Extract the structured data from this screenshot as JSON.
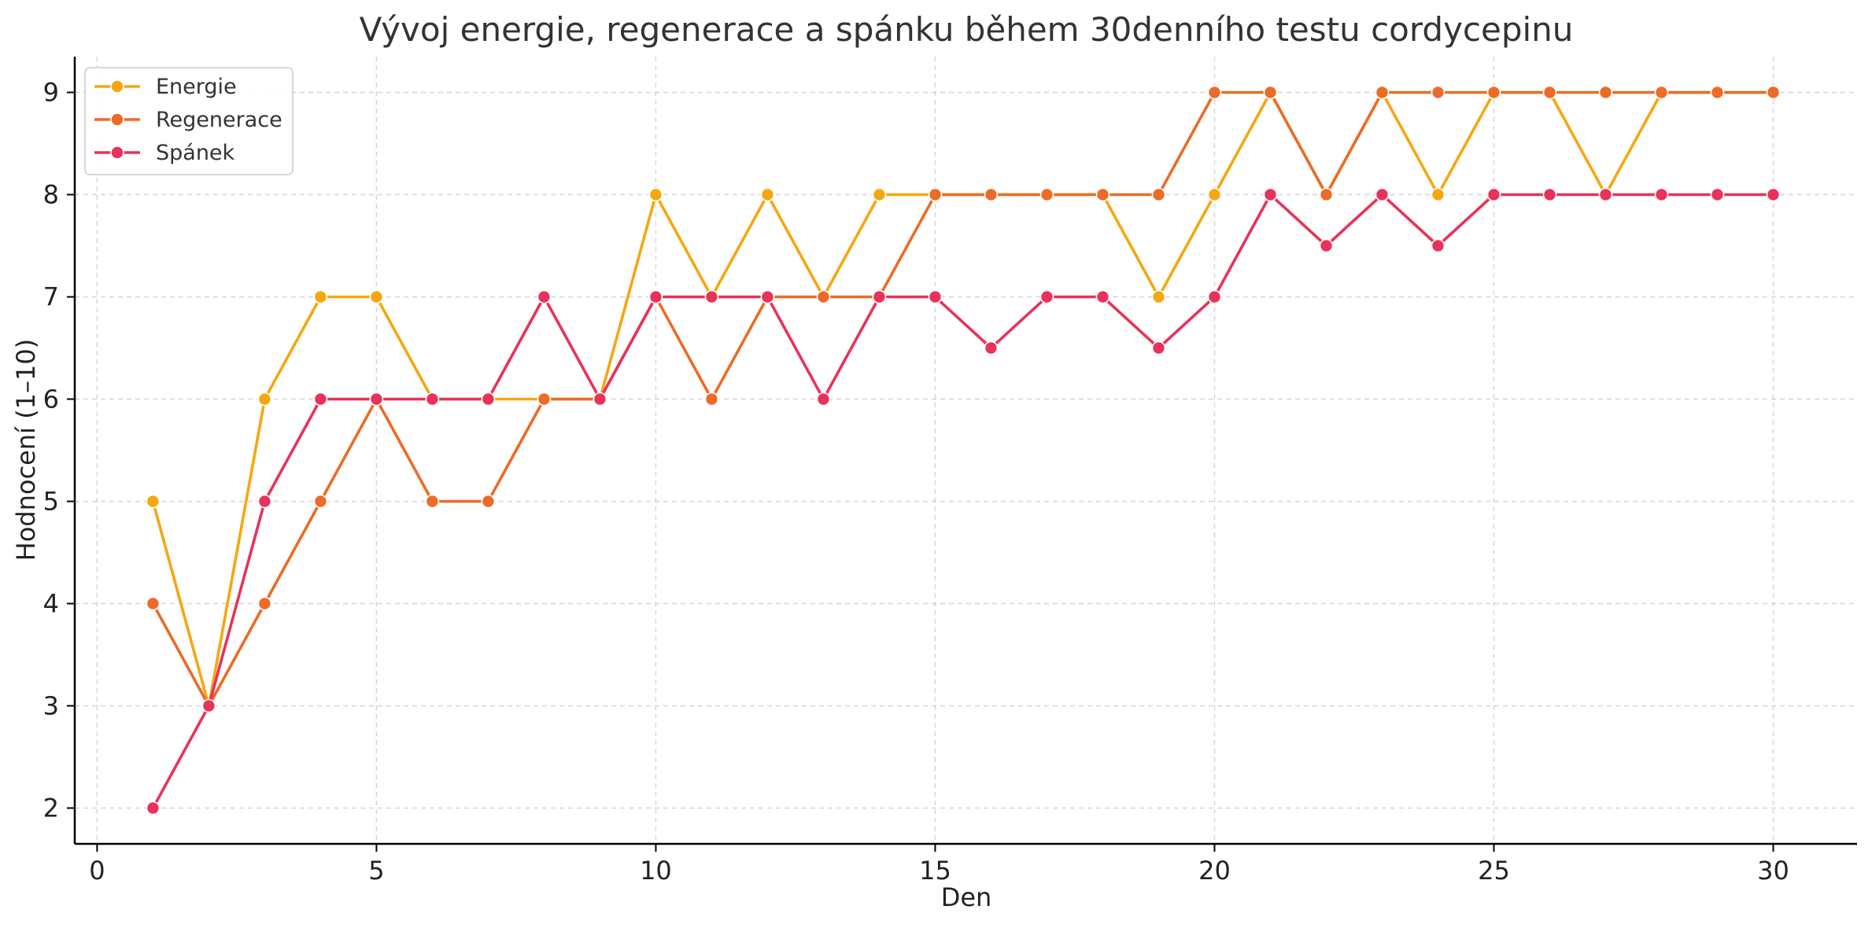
{
  "chart_data": {
    "type": "line",
    "title": "Vývoj energie, regenerace a spánku během 30denního testu cordycepinu",
    "xlabel": "Den",
    "ylabel": "Hodnocení (1–10)",
    "x": [
      1,
      2,
      3,
      4,
      5,
      6,
      7,
      8,
      9,
      10,
      11,
      12,
      13,
      14,
      15,
      16,
      17,
      18,
      19,
      20,
      21,
      22,
      23,
      24,
      25,
      26,
      27,
      28,
      29,
      30
    ],
    "xlim": [
      -0.4,
      31.5
    ],
    "ylim": [
      1.65,
      9.35
    ],
    "xticks": [
      0,
      5,
      10,
      15,
      20,
      25,
      30
    ],
    "yticks": [
      2,
      3,
      4,
      5,
      6,
      7,
      8,
      9
    ],
    "grid": true,
    "legend_position": "top-left",
    "series": [
      {
        "name": "Energie",
        "color": "#F5A70F",
        "values": [
          5,
          3,
          6,
          7,
          7,
          6,
          6,
          6,
          6,
          8,
          7,
          8,
          7,
          8,
          8,
          8,
          8,
          8,
          7,
          8,
          9,
          8,
          9,
          8,
          9,
          9,
          8,
          9,
          9,
          9
        ]
      },
      {
        "name": "Regenerace",
        "color": "#EC6B26",
        "values": [
          4,
          3,
          4,
          5,
          6,
          5,
          5,
          6,
          6,
          7,
          6,
          7,
          7,
          7,
          8,
          8,
          8,
          8,
          8,
          9,
          9,
          8,
          9,
          9,
          9,
          9,
          9,
          9,
          9,
          9
        ]
      },
      {
        "name": "Spánek",
        "color": "#E8325A",
        "values": [
          2,
          3,
          5,
          6,
          6,
          6,
          6,
          7,
          6,
          7,
          7,
          7,
          6,
          7,
          7,
          6.5,
          7,
          7,
          6.5,
          7,
          8,
          7.5,
          8,
          7.5,
          8,
          8,
          8,
          8,
          8,
          8
        ]
      }
    ]
  }
}
